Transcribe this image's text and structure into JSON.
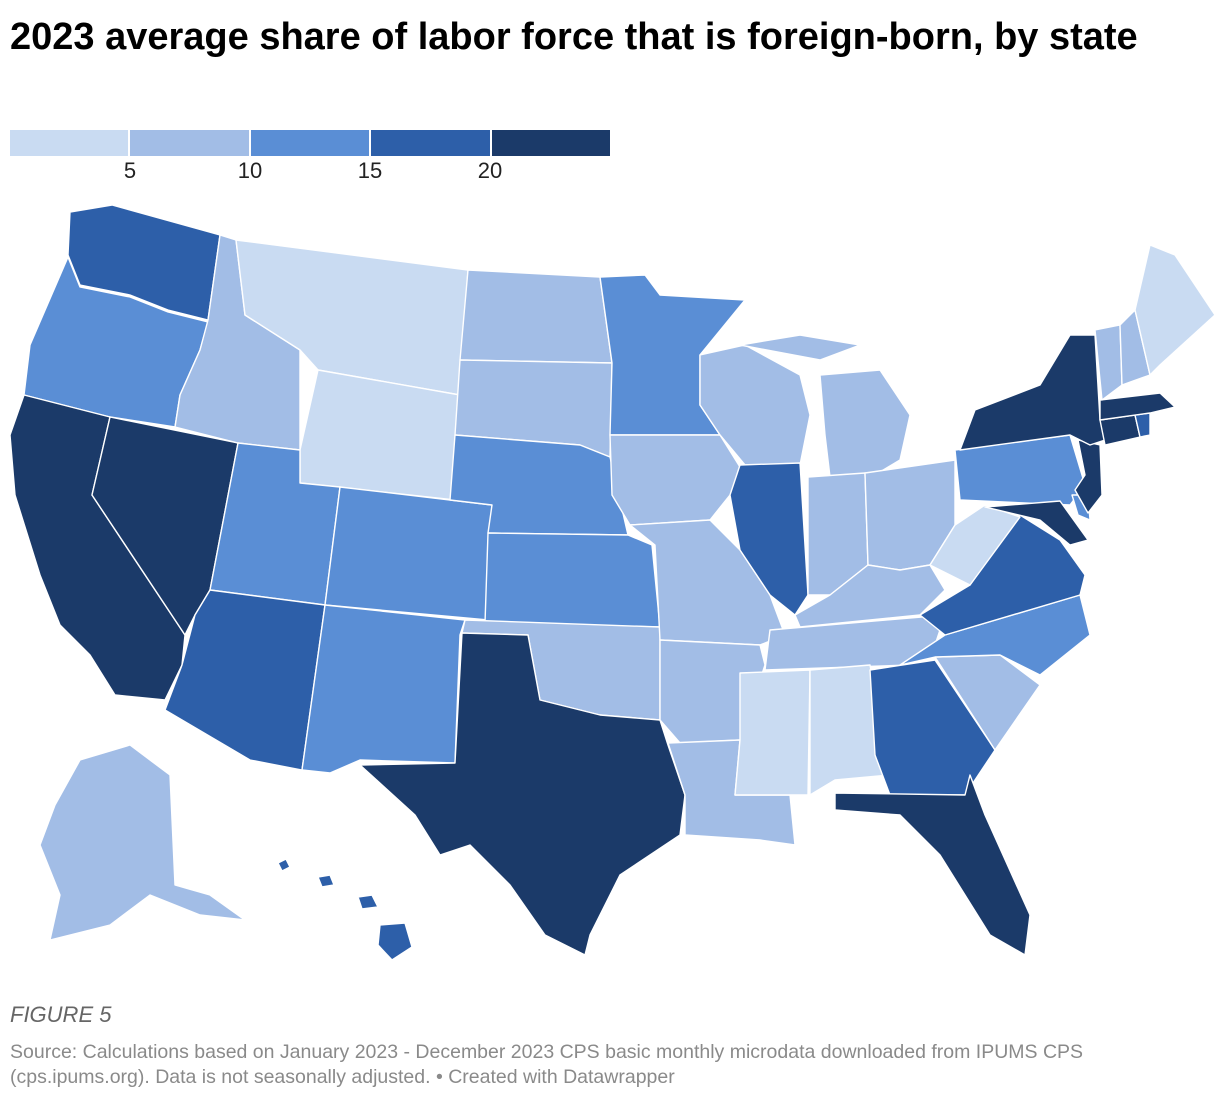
{
  "title": "2023 average share of labor force that is foreign-born, by state",
  "legend": {
    "colors": [
      "#c9dbf2",
      "#a2bde6",
      "#5a8ed5",
      "#2d5fa9",
      "#1b3a69"
    ],
    "ticks": [
      "5",
      "10",
      "15",
      "20"
    ]
  },
  "chart_data": {
    "type": "choropleth",
    "title": "2023 average share of labor force that is foreign-born, by state",
    "bins": [
      {
        "range": "<5"
      },
      {
        "range": "5-10"
      },
      {
        "range": "10-15"
      },
      {
        "range": "15-20"
      },
      {
        "range": ">20"
      }
    ],
    "states": [
      {
        "state": "WA",
        "bin": 3
      },
      {
        "state": "OR",
        "bin": 2
      },
      {
        "state": "CA",
        "bin": 4
      },
      {
        "state": "NV",
        "bin": 4
      },
      {
        "state": "ID",
        "bin": 1
      },
      {
        "state": "MT",
        "bin": 0
      },
      {
        "state": "WY",
        "bin": 0
      },
      {
        "state": "UT",
        "bin": 2
      },
      {
        "state": "AZ",
        "bin": 3
      },
      {
        "state": "CO",
        "bin": 2
      },
      {
        "state": "NM",
        "bin": 2
      },
      {
        "state": "ND",
        "bin": 1
      },
      {
        "state": "SD",
        "bin": 1
      },
      {
        "state": "NE",
        "bin": 2
      },
      {
        "state": "KS",
        "bin": 2
      },
      {
        "state": "OK",
        "bin": 1
      },
      {
        "state": "TX",
        "bin": 4
      },
      {
        "state": "MN",
        "bin": 2
      },
      {
        "state": "IA",
        "bin": 1
      },
      {
        "state": "MO",
        "bin": 1
      },
      {
        "state": "AR",
        "bin": 1
      },
      {
        "state": "LA",
        "bin": 1
      },
      {
        "state": "WI",
        "bin": 1
      },
      {
        "state": "IL",
        "bin": 3
      },
      {
        "state": "MI",
        "bin": 1
      },
      {
        "state": "IN",
        "bin": 1
      },
      {
        "state": "OH",
        "bin": 1
      },
      {
        "state": "KY",
        "bin": 1
      },
      {
        "state": "TN",
        "bin": 1
      },
      {
        "state": "MS",
        "bin": 0
      },
      {
        "state": "AL",
        "bin": 0
      },
      {
        "state": "GA",
        "bin": 3
      },
      {
        "state": "FL",
        "bin": 4
      },
      {
        "state": "SC",
        "bin": 1
      },
      {
        "state": "NC",
        "bin": 2
      },
      {
        "state": "VA",
        "bin": 3
      },
      {
        "state": "WV",
        "bin": 0
      },
      {
        "state": "PA",
        "bin": 2
      },
      {
        "state": "NY",
        "bin": 4
      },
      {
        "state": "VT",
        "bin": 1
      },
      {
        "state": "NH",
        "bin": 1
      },
      {
        "state": "ME",
        "bin": 0
      },
      {
        "state": "MA",
        "bin": 4
      },
      {
        "state": "RI",
        "bin": 3
      },
      {
        "state": "CT",
        "bin": 4
      },
      {
        "state": "NJ",
        "bin": 4
      },
      {
        "state": "DE",
        "bin": 2
      },
      {
        "state": "MD",
        "bin": 4
      },
      {
        "state": "AK",
        "bin": 1
      },
      {
        "state": "HI",
        "bin": 3
      }
    ]
  },
  "figure_label": "FIGURE 5",
  "source": "Source: Calculations based on January 2023 - December 2023 CPS basic monthly microdata downloaded from IPUMS CPS (cps.ipums.org). Data is not seasonally adjusted. • Created with Datawrapper"
}
